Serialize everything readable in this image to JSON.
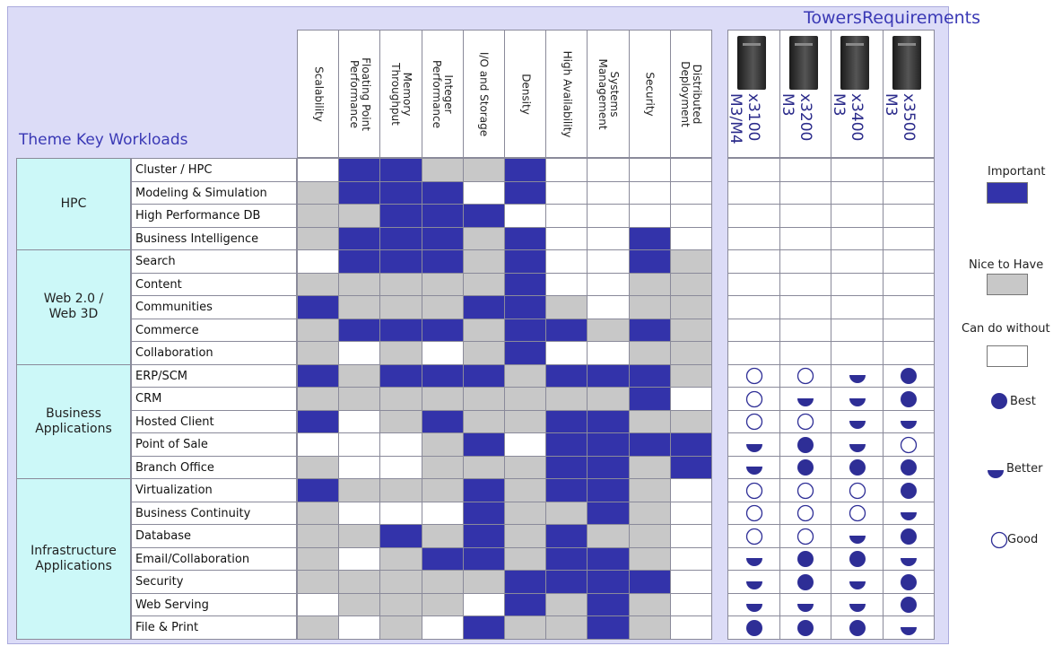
{
  "title_right": "TowersRequirements",
  "title_left": "Theme Key Workloads",
  "columns": [
    "Scalability",
    "Floating Point\nPerformance",
    "Memory\nThroughput",
    "Integer\nPerformance",
    "I/O and Storage",
    "Density",
    "High Availability",
    "Systems\nManagement",
    "Security",
    "Distributed\nDeployment"
  ],
  "towers": [
    {
      "name": "x3100\nM3/M4"
    },
    {
      "name": "x3200\nM3"
    },
    {
      "name": "x3400\nM3"
    },
    {
      "name": "x3500\nM3"
    }
  ],
  "themes": [
    {
      "label": "HPC",
      "rows": 4
    },
    {
      "label": "Web 2.0 /\nWeb 3D",
      "rows": 5
    },
    {
      "label": "Business\nApplications",
      "rows": 5
    },
    {
      "label": "Infrastructure\nApplications",
      "rows": 7
    }
  ],
  "workloads": [
    "Cluster / HPC",
    "Modeling & Simulation",
    "High Performance DB",
    "Business Intelligence",
    "Search",
    "Content",
    "Communities",
    "Commerce",
    "Collaboration",
    "ERP/SCM",
    "CRM",
    "Hosted Client",
    "Point of Sale",
    "Branch Office",
    "Virtualization",
    "Business Continuity",
    "Database",
    "Email/Collaboration",
    "Security",
    "Web Serving",
    "File & Print"
  ],
  "matrix": [
    "WIIGGIWWWW",
    "GIIIWIWWWW",
    "GGIIIWWWWW",
    "GIIIGIWWIW",
    "WIIIGIWWIG",
    "GGGGGIWWGG",
    "IGGGIIGWGG",
    "GIIIGIIGIG",
    "GWGWGIWWGG",
    "IGIIIGIIIG",
    "GGGGGGGGIW",
    "IWGIGGIIGG",
    "WWWGIWIIII",
    "GWWGGGIIGI",
    "IGGGIGIIGW",
    "GWWWIGGIGW",
    "GGIGIGIGGW",
    "GWGIIGIIGW",
    "GGGGGIIIIW",
    "WGGGWIGIGW",
    "GWGWIGGIGW"
  ],
  "tower_ratings": [
    [
      "",
      "",
      "",
      ""
    ],
    [
      "",
      "",
      "",
      ""
    ],
    [
      "",
      "",
      "",
      ""
    ],
    [
      "",
      "",
      "",
      ""
    ],
    [
      "",
      "",
      "",
      ""
    ],
    [
      "",
      "",
      "",
      ""
    ],
    [
      "",
      "",
      "",
      ""
    ],
    [
      "",
      "",
      "",
      ""
    ],
    [
      "",
      "",
      "",
      ""
    ],
    [
      "good",
      "good",
      "better",
      "best"
    ],
    [
      "good",
      "better",
      "better",
      "best"
    ],
    [
      "good",
      "good",
      "better",
      "better"
    ],
    [
      "better",
      "best",
      "better",
      "good"
    ],
    [
      "better",
      "best",
      "best",
      "best"
    ],
    [
      "good",
      "good",
      "good",
      "best"
    ],
    [
      "good",
      "good",
      "good",
      "better"
    ],
    [
      "good",
      "good",
      "better",
      "best"
    ],
    [
      "better",
      "best",
      "best",
      "better"
    ],
    [
      "better",
      "best",
      "better",
      "best"
    ],
    [
      "better",
      "better",
      "better",
      "best"
    ],
    [
      "best",
      "best",
      "best",
      "better"
    ]
  ],
  "legend": {
    "important": "Important",
    "nice": "Nice to Have",
    "without": "Can do without",
    "best": "Best",
    "better": "Better",
    "good": "Good"
  },
  "colors": {
    "important": "#3333aa",
    "nice": "#c8c8c8",
    "without": "#ffffff",
    "rating": "#2e2e96"
  }
}
